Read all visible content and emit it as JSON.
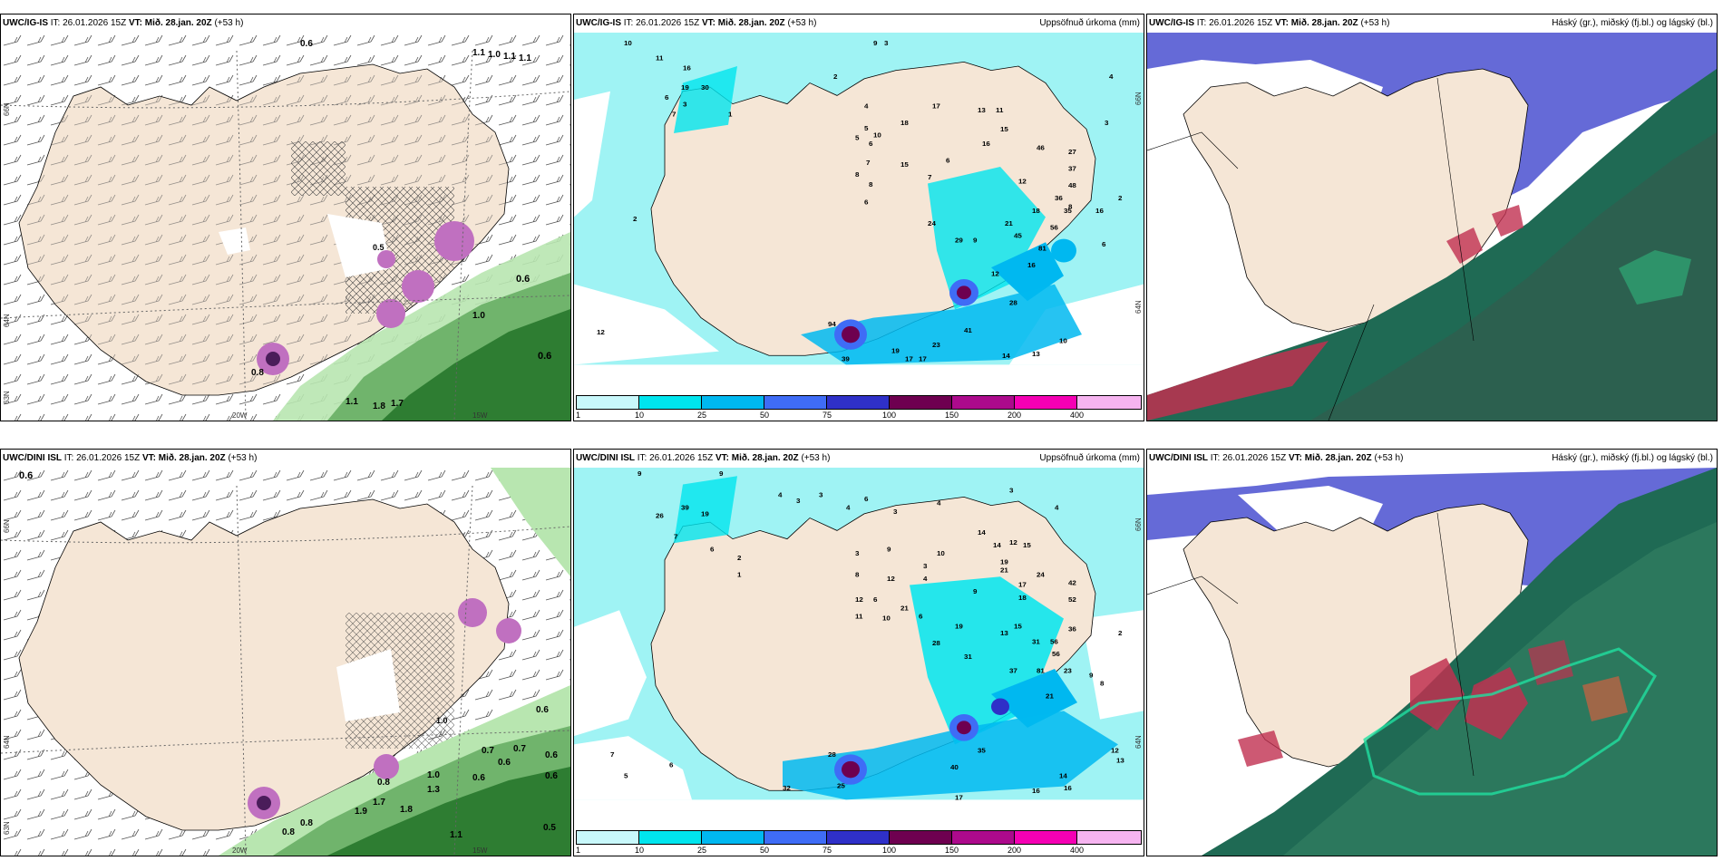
{
  "panels": [
    {
      "model": "UWC/IG-IS",
      "it_label": "IT:",
      "it": "26.01.2026 15Z",
      "vt_label": "VT:",
      "vt": "Mið. 28.jan. 20Z",
      "lead": "(+53 h)",
      "title_right": "",
      "lat_labels": [
        "66N",
        "64N",
        "63N"
      ],
      "lon_labels": [
        "20W",
        "15W"
      ],
      "contour_labels": [
        "0.6",
        "0.6",
        "1.0",
        "1.8",
        "1.7",
        "1.1",
        "0.8",
        "1.1",
        "1.0",
        "1.1",
        "1.1",
        "0.6",
        "0.5"
      ]
    },
    {
      "model": "UWC/IG-IS",
      "it_label": "IT:",
      "it": "26.01.2026 15Z",
      "vt_label": "VT:",
      "vt": "Mið. 28.jan. 20Z",
      "lead": "(+53 h)",
      "title_right": "Uppsöfnuð úrkoma (mm)",
      "lat_labels": [
        "66N",
        "64N"
      ],
      "values": [
        "10",
        "11",
        "16",
        "19",
        "30",
        "6",
        "7",
        "3",
        "1",
        "2",
        "9",
        "3",
        "4",
        "5",
        "6",
        "7",
        "8",
        "5",
        "10",
        "8",
        "15",
        "13",
        "11",
        "17",
        "15",
        "18",
        "16",
        "6",
        "12",
        "7",
        "46",
        "27",
        "37",
        "48",
        "36",
        "35",
        "56",
        "81",
        "24",
        "29",
        "9",
        "21",
        "18",
        "45",
        "16",
        "12",
        "8",
        "16",
        "6",
        "2",
        "28",
        "41",
        "23",
        "94",
        "12",
        "19",
        "17",
        "17",
        "39",
        "14",
        "13",
        "10",
        "6",
        "3",
        "4",
        "2"
      ],
      "colorbar_ticks": [
        "1",
        "10",
        "25",
        "50",
        "75",
        "100",
        "150",
        "200",
        "400"
      ]
    },
    {
      "model": "UWC/IG-IS",
      "it_label": "IT:",
      "it": "26.01.2026 15Z",
      "vt_label": "VT:",
      "vt": "Mið. 28.jan. 20Z",
      "lead": "(+53 h)",
      "title_right": "Háský (gr.), miðský (fj.bl.) og lágský (bl.)"
    },
    {
      "model": "UWC/DINI ISL",
      "it_label": "IT:",
      "it": "26.01.2026 15Z",
      "vt_label": "VT:",
      "vt": "Mið. 28.jan. 20Z",
      "lead": "(+53 h)",
      "title_right": "",
      "lat_labels": [
        "66N",
        "64N",
        "63N"
      ],
      "lon_labels": [
        "20W",
        "15W"
      ],
      "contour_labels": [
        "0.6",
        "0.6",
        "0.6",
        "0.7",
        "0.7",
        "0.6",
        "0.6",
        "0.8",
        "1.0",
        "1.3",
        "1.9",
        "1.7",
        "1.8",
        "0.8",
        "1.1",
        "0.5",
        "0.8",
        "0.6",
        "1.0"
      ]
    },
    {
      "model": "UWC/DINI ISL",
      "it_label": "IT:",
      "it": "26.01.2026 15Z",
      "vt_label": "VT:",
      "vt": "Mið. 28.jan. 20Z",
      "lead": "(+53 h)",
      "title_right": "Uppsöfnuð úrkoma (mm)",
      "lat_labels": [
        "66N",
        "64N"
      ],
      "values": [
        "9",
        "9",
        "4",
        "3",
        "3",
        "4",
        "6",
        "3",
        "4",
        "3",
        "4",
        "26",
        "39",
        "19",
        "7",
        "6",
        "2",
        "1",
        "3",
        "9",
        "10",
        "8",
        "12",
        "6",
        "12",
        "11",
        "10",
        "21",
        "3",
        "4",
        "14",
        "14",
        "12",
        "15",
        "9",
        "19",
        "21",
        "17",
        "18",
        "24",
        "56",
        "31",
        "15",
        "13",
        "42",
        "52",
        "36",
        "56",
        "81",
        "19",
        "28",
        "31",
        "6",
        "37",
        "21",
        "8",
        "35",
        "40",
        "28",
        "25",
        "32",
        "14",
        "16",
        "12",
        "13",
        "7",
        "5",
        "6",
        "17",
        "2",
        "9",
        "23",
        "16"
      ],
      "colorbar_ticks": [
        "1",
        "10",
        "25",
        "50",
        "75",
        "100",
        "150",
        "200",
        "400"
      ]
    },
    {
      "model": "UWC/DINI ISL",
      "it_label": "IT:",
      "it": "26.01.2026 15Z",
      "vt_label": "VT:",
      "vt": "Mið. 28.jan. 20Z",
      "lead": "(+53 h)",
      "title_right": "Háský (gr.), miðský (fj.bl.) og lágský (bl.)"
    }
  ],
  "colorbar_colors": [
    "#c8f8fb",
    "#00e5ee",
    "#00b8f0",
    "#3f6cf6",
    "#2f30c8",
    "#6e0050",
    "#ac0a8c",
    "#f500b4",
    "#f6b4f0"
  ],
  "land_color": "#f5e6d6",
  "sea_precip_color": "#9ff3f4"
}
